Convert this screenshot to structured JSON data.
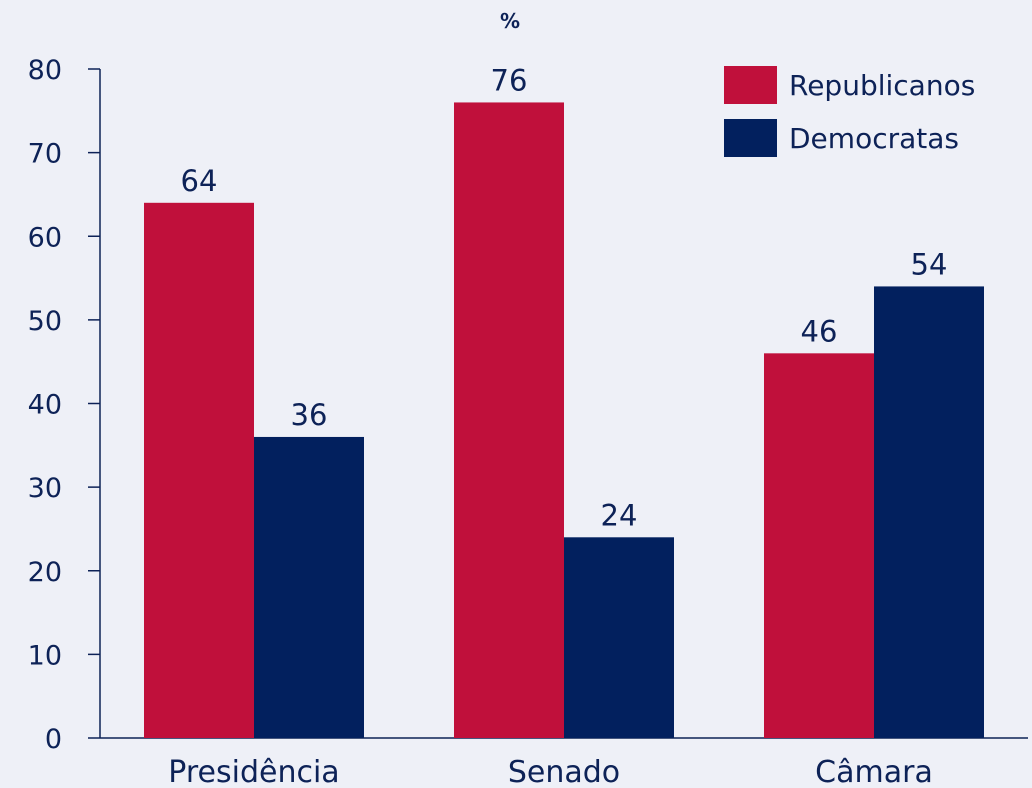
{
  "chart_data": {
    "type": "bar",
    "title": "",
    "unit_label": "%",
    "xlabel": "",
    "ylabel": "",
    "categories": [
      "Presidência",
      "Senado",
      "Câmara"
    ],
    "series": [
      {
        "name": "Republicanos",
        "color": "#c0103b",
        "values": [
          64,
          76,
          46
        ]
      },
      {
        "name": "Democratas",
        "color": "#02205e",
        "values": [
          36,
          24,
          54
        ]
      }
    ],
    "ylim": [
      0,
      80
    ],
    "yticks": [
      0,
      10,
      20,
      30,
      40,
      50,
      60,
      70,
      80
    ],
    "legend_position": "top-right",
    "grid": false
  }
}
